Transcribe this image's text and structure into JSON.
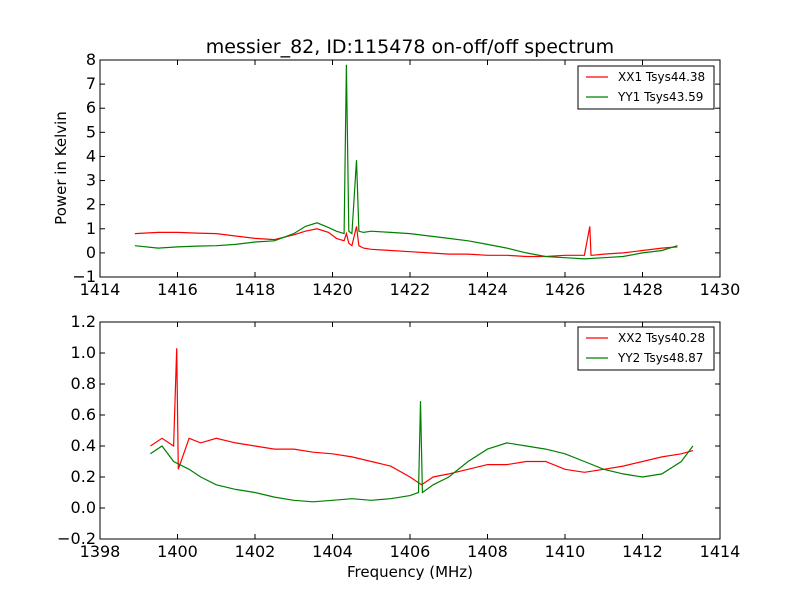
{
  "chart_data": [
    {
      "type": "line",
      "title": "messier_82, ID:115478 on-off/off spectrum",
      "xlabel": "",
      "ylabel": "Power in Kelvin",
      "xlim": [
        1414,
        1430
      ],
      "ylim": [
        -1,
        8
      ],
      "xticks": [
        1414,
        1416,
        1418,
        1420,
        1422,
        1424,
        1426,
        1428,
        1430
      ],
      "yticks": [
        -1,
        0,
        1,
        2,
        3,
        4,
        5,
        6,
        7,
        8
      ],
      "xtick_labels": [
        "1414",
        "1416",
        "1418",
        "1420",
        "1422",
        "1424",
        "1426",
        "1428",
        "1430"
      ],
      "ytick_labels": [
        "−1",
        "0",
        "1",
        "2",
        "3",
        "4",
        "5",
        "6",
        "7",
        "8"
      ],
      "legend_position": "top-right",
      "series": [
        {
          "name": "XX1 Tsys44.38",
          "color": "#ff0000",
          "x": [
            1414.9,
            1415.5,
            1416.0,
            1416.5,
            1417.0,
            1417.5,
            1418.0,
            1418.5,
            1419.0,
            1419.3,
            1419.6,
            1419.9,
            1420.1,
            1420.3,
            1420.36,
            1420.42,
            1420.5,
            1420.62,
            1420.68,
            1420.8,
            1421.0,
            1421.5,
            1422.0,
            1422.5,
            1423.0,
            1423.5,
            1424.0,
            1424.5,
            1425.0,
            1425.5,
            1426.0,
            1426.5,
            1426.64,
            1426.67,
            1426.7,
            1427.0,
            1427.5,
            1428.0,
            1428.5,
            1428.9
          ],
          "y": [
            0.8,
            0.85,
            0.85,
            0.82,
            0.8,
            0.7,
            0.6,
            0.55,
            0.75,
            0.9,
            1.0,
            0.85,
            0.6,
            0.5,
            0.8,
            0.4,
            0.3,
            1.1,
            0.3,
            0.2,
            0.15,
            0.1,
            0.05,
            0.0,
            -0.05,
            -0.05,
            -0.1,
            -0.1,
            -0.15,
            -0.15,
            -0.1,
            -0.1,
            1.1,
            -0.1,
            -0.1,
            -0.05,
            0.0,
            0.1,
            0.2,
            0.25
          ]
        },
        {
          "name": "YY1 Tsys43.59",
          "color": "#008000",
          "x": [
            1414.9,
            1415.5,
            1416.0,
            1416.5,
            1417.0,
            1417.5,
            1418.0,
            1418.5,
            1419.0,
            1419.3,
            1419.6,
            1419.9,
            1420.1,
            1420.3,
            1420.36,
            1420.42,
            1420.5,
            1420.62,
            1420.68,
            1420.8,
            1421.0,
            1421.5,
            1422.0,
            1422.5,
            1423.0,
            1423.5,
            1424.0,
            1424.5,
            1425.0,
            1425.5,
            1426.0,
            1426.5,
            1427.0,
            1427.5,
            1428.0,
            1428.5,
            1428.9
          ],
          "y": [
            0.3,
            0.2,
            0.25,
            0.28,
            0.3,
            0.35,
            0.45,
            0.5,
            0.8,
            1.1,
            1.25,
            1.05,
            0.9,
            0.8,
            7.8,
            0.9,
            0.8,
            3.85,
            0.9,
            0.85,
            0.9,
            0.85,
            0.8,
            0.7,
            0.6,
            0.5,
            0.35,
            0.2,
            0.0,
            -0.15,
            -0.2,
            -0.25,
            -0.2,
            -0.15,
            0.0,
            0.1,
            0.3
          ]
        }
      ]
    },
    {
      "type": "line",
      "title": "",
      "xlabel": "Frequency (MHz)",
      "ylabel": "",
      "xlim": [
        1398,
        1414
      ],
      "ylim": [
        -0.2,
        1.2
      ],
      "xticks": [
        1398,
        1400,
        1402,
        1404,
        1406,
        1408,
        1410,
        1412,
        1414
      ],
      "yticks": [
        -0.2,
        0.0,
        0.2,
        0.4,
        0.6,
        0.8,
        1.0,
        1.2
      ],
      "xtick_labels": [
        "1398",
        "1400",
        "1402",
        "1404",
        "1406",
        "1408",
        "1410",
        "1412",
        "1414"
      ],
      "ytick_labels": [
        "−0.2",
        "0.0",
        "0.2",
        "0.4",
        "0.6",
        "0.8",
        "1.0",
        "1.2"
      ],
      "legend_position": "top-right",
      "series": [
        {
          "name": "XX2 Tsys40.28",
          "color": "#ff0000",
          "x": [
            1399.3,
            1399.6,
            1399.9,
            1399.98,
            1400.02,
            1400.3,
            1400.6,
            1401.0,
            1401.5,
            1402.0,
            1402.5,
            1403.0,
            1403.5,
            1404.0,
            1404.5,
            1405.0,
            1405.5,
            1406.0,
            1406.3,
            1406.6,
            1407.0,
            1407.5,
            1408.0,
            1408.5,
            1409.0,
            1409.5,
            1410.0,
            1410.5,
            1411.0,
            1411.5,
            1412.0,
            1412.5,
            1413.0,
            1413.3
          ],
          "y": [
            0.4,
            0.45,
            0.4,
            1.03,
            0.25,
            0.45,
            0.42,
            0.45,
            0.42,
            0.4,
            0.38,
            0.38,
            0.36,
            0.35,
            0.33,
            0.3,
            0.27,
            0.2,
            0.15,
            0.2,
            0.22,
            0.25,
            0.28,
            0.28,
            0.3,
            0.3,
            0.25,
            0.23,
            0.25,
            0.27,
            0.3,
            0.33,
            0.35,
            0.37
          ]
        },
        {
          "name": "YY2 Tsys48.87",
          "color": "#008000",
          "x": [
            1399.3,
            1399.6,
            1399.9,
            1400.3,
            1400.6,
            1401.0,
            1401.5,
            1402.0,
            1402.5,
            1403.0,
            1403.5,
            1404.0,
            1404.5,
            1405.0,
            1405.5,
            1406.0,
            1406.22,
            1406.27,
            1406.32,
            1406.6,
            1407.0,
            1407.5,
            1408.0,
            1408.5,
            1409.0,
            1409.5,
            1410.0,
            1410.5,
            1411.0,
            1411.5,
            1412.0,
            1412.5,
            1413.0,
            1413.3
          ],
          "y": [
            0.35,
            0.4,
            0.3,
            0.25,
            0.2,
            0.15,
            0.12,
            0.1,
            0.07,
            0.05,
            0.04,
            0.05,
            0.06,
            0.05,
            0.06,
            0.08,
            0.1,
            0.69,
            0.1,
            0.15,
            0.2,
            0.3,
            0.38,
            0.42,
            0.4,
            0.38,
            0.35,
            0.3,
            0.25,
            0.22,
            0.2,
            0.22,
            0.3,
            0.4
          ]
        }
      ]
    }
  ]
}
